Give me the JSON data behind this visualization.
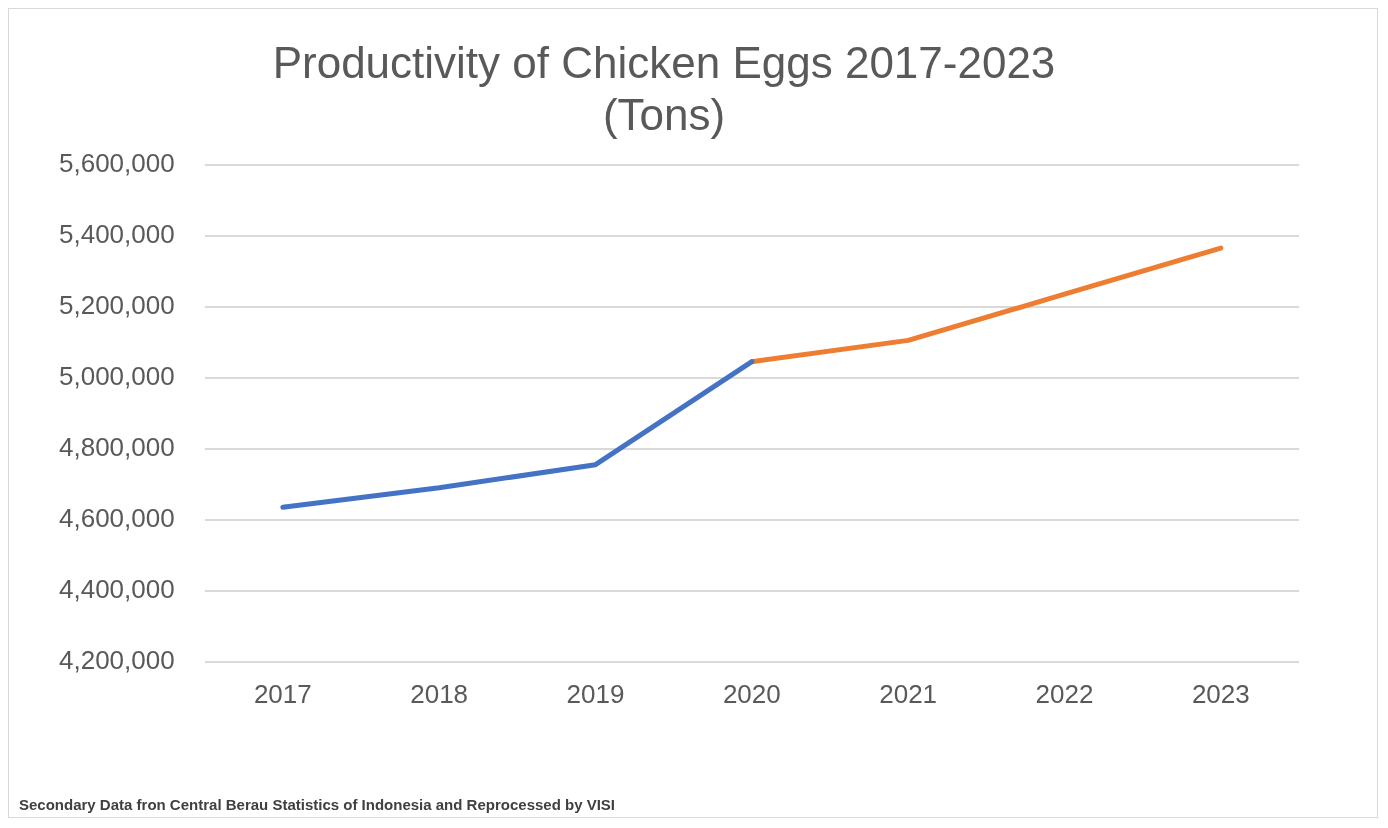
{
  "chart_data": {
    "type": "line",
    "title": "Productivity of Chicken Eggs 2017-2023\n(Tons)",
    "categories": [
      "2017",
      "2018",
      "2019",
      "2020",
      "2021",
      "2022",
      "2023"
    ],
    "series": [
      {
        "color": "#4472c4",
        "values": [
          4635000,
          4690000,
          4755000,
          5045000,
          null,
          null,
          null
        ]
      },
      {
        "color": "#ed7d31",
        "values": [
          null,
          null,
          null,
          5045000,
          5105000,
          5235000,
          5365000
        ]
      }
    ],
    "ylim": [
      4200000,
      5600000
    ],
    "yticks": [
      {
        "value": 4200000,
        "label": "4,200,000"
      },
      {
        "value": 4400000,
        "label": "4,400,000"
      },
      {
        "value": 4600000,
        "label": "4,600,000"
      },
      {
        "value": 4800000,
        "label": "4,800,000"
      },
      {
        "value": 5000000,
        "label": "5,000,000"
      },
      {
        "value": 5200000,
        "label": "5,200,000"
      },
      {
        "value": 5400000,
        "label": "5,400,000"
      },
      {
        "value": 5600000,
        "label": "5,600,000"
      }
    ],
    "grid": "y",
    "legend": false,
    "annotations": [
      "Secondary Data fron Central Berau Statistics of Indonesia and Reprocessed by VISI"
    ]
  }
}
